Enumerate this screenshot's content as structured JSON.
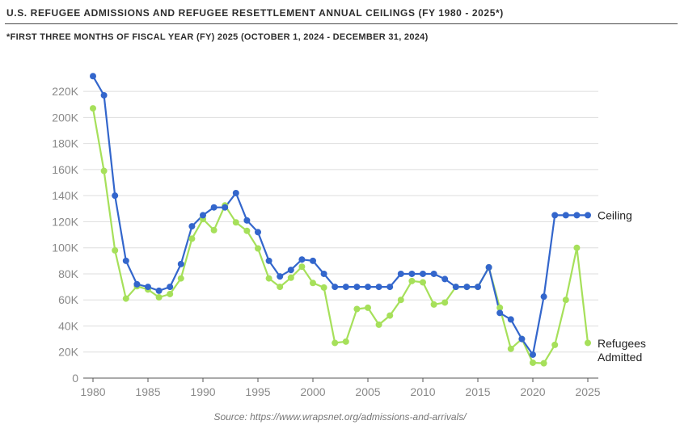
{
  "header": {
    "title": "U.S. REFUGEE ADMISSIONS AND REFUGEE RESETTLEMENT ANNUAL CEILINGS (FY 1980 - 2025*)",
    "subtitle": "*FIRST THREE MONTHS OF FISCAL YEAR (FY) 2025 (OCTOBER 1, 2024 - DECEMBER 31, 2024)"
  },
  "footer": {
    "source": "Source: https://www.wrapsnet.org/admissions-and-arrivals/"
  },
  "chart_data": {
    "type": "line",
    "title": "U.S. REFUGEE ADMISSIONS AND REFUGEE RESETTLEMENT ANNUAL CEILINGS (FY 1980 - 2025*)",
    "subtitle": "*FIRST THREE MONTHS OF FISCAL YEAR (FY) 2025 (OCTOBER 1, 2024 - DECEMBER 31, 2024)",
    "xlabel": "",
    "ylabel": "",
    "xlim": [
      1980,
      2025
    ],
    "ylim": [
      0,
      230000
    ],
    "grid": true,
    "legend": "right, labels at line ends",
    "x_ticks": [
      1980,
      1985,
      1990,
      1995,
      2000,
      2005,
      2010,
      2015,
      2020,
      2025
    ],
    "y_ticks": [
      {
        "value": 0,
        "label": "0"
      },
      {
        "value": 20000,
        "label": "20K"
      },
      {
        "value": 40000,
        "label": "40K"
      },
      {
        "value": 60000,
        "label": "60K"
      },
      {
        "value": 80000,
        "label": "80K"
      },
      {
        "value": 100000,
        "label": "100K"
      },
      {
        "value": 120000,
        "label": "120K"
      },
      {
        "value": 140000,
        "label": "140K"
      },
      {
        "value": 160000,
        "label": "160K"
      },
      {
        "value": 180000,
        "label": "180K"
      },
      {
        "value": 200000,
        "label": "200K"
      },
      {
        "value": 220000,
        "label": "220K"
      }
    ],
    "x": [
      1980,
      1981,
      1982,
      1983,
      1984,
      1985,
      1986,
      1987,
      1988,
      1989,
      1990,
      1991,
      1992,
      1993,
      1994,
      1995,
      1996,
      1997,
      1998,
      1999,
      2000,
      2001,
      2002,
      2003,
      2004,
      2005,
      2006,
      2007,
      2008,
      2009,
      2010,
      2011,
      2012,
      2013,
      2014,
      2015,
      2016,
      2017,
      2018,
      2019,
      2020,
      2021,
      2022,
      2023,
      2024,
      2025
    ],
    "series": [
      {
        "name": "Ceiling",
        "color": "#3366cc",
        "values": [
          231700,
          217000,
          140000,
          90000,
          72000,
          70000,
          67000,
          70000,
          87500,
          116500,
          125000,
          131000,
          131000,
          142000,
          121000,
          112000,
          90000,
          78000,
          83000,
          91000,
          90000,
          80000,
          70000,
          70000,
          70000,
          70000,
          70000,
          70000,
          80000,
          80000,
          80000,
          80000,
          76000,
          70000,
          70000,
          70000,
          85000,
          50000,
          45000,
          30000,
          18000,
          62500,
          125000,
          125000,
          125000,
          125000
        ]
      },
      {
        "name": "Refugees Admitted",
        "color": "#a6e05a",
        "values": [
          207000,
          159000,
          98000,
          61000,
          70500,
          68000,
          62000,
          64500,
          76500,
          107000,
          122000,
          113500,
          132500,
          119500,
          113000,
          99500,
          76500,
          70000,
          77000,
          85500,
          73000,
          69500,
          27000,
          28000,
          53000,
          54000,
          41000,
          48000,
          60000,
          74500,
          73500,
          56500,
          58000,
          70000,
          70000,
          70000,
          85000,
          54000,
          22500,
          30000,
          11800,
          11400,
          25500,
          60000,
          100000,
          27000
        ]
      }
    ]
  }
}
